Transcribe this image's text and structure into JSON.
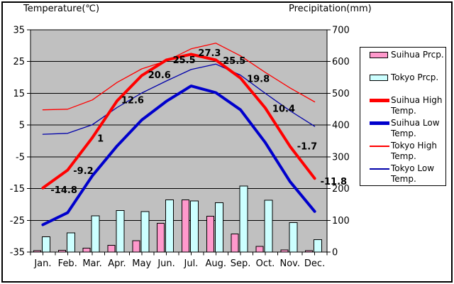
{
  "page": {
    "left_axis_title": "Temperature(℃)",
    "right_axis_title": "Precipitation(mm)"
  },
  "colors": {
    "plot_background": "#C0C0C0",
    "suihua_prcp_bar": "#FF99CC",
    "tokyo_prcp_bar": "#CCFFFF",
    "suihua_temp_line": "#FF0000",
    "suihua_low_line": "#0000CC",
    "tokyo_high_line": "#FF0000",
    "tokyo_low_line": "#0000AA",
    "grid_and_text": "#000000"
  },
  "chart_data": {
    "type": "combo-bar-line",
    "categories": [
      "Jan.",
      "Feb.",
      "Mar.",
      "Apr.",
      "May",
      "Jun.",
      "Jul.",
      "Aug.",
      "Sep.",
      "Oct.",
      "Nov.",
      "Dec."
    ],
    "temp_axis": {
      "title": "Temperature(℃)",
      "min": -35,
      "max": 35,
      "ticks": [
        35,
        25,
        15,
        5,
        -5,
        -15,
        -25,
        -35
      ],
      "side": "left",
      "grid": true
    },
    "precip_axis": {
      "title": "Precipitation(mm)",
      "min": 0,
      "max": 700,
      "ticks": [
        700,
        600,
        500,
        400,
        300,
        200,
        100,
        0
      ],
      "side": "right"
    },
    "series": [
      {
        "name": "Suihua Prcp.",
        "type": "bar",
        "axis": "precip",
        "color": "#FF99CC",
        "values": [
          4,
          6,
          12,
          21,
          36,
          91,
          164,
          113,
          57,
          18,
          7,
          5
        ]
      },
      {
        "name": "Tokyo Prcp.",
        "type": "bar",
        "axis": "precip",
        "color": "#CCFFFF",
        "values": [
          48.6,
          60.2,
          114.5,
          130.3,
          128.0,
          164.9,
          161.5,
          155.1,
          208.5,
          163.1,
          92.5,
          39.6
        ]
      },
      {
        "name": "Suihua High Temp.",
        "type": "line",
        "axis": "temp",
        "color": "#FF0000",
        "width": 4,
        "values": [
          -14.8,
          -9.2,
          1,
          12.6,
          20.6,
          25.5,
          27.3,
          25.5,
          19.8,
          10.4,
          -1.7,
          -11.8
        ]
      },
      {
        "name": "Suihua Low Temp.",
        "type": "line",
        "axis": "temp",
        "color": "#0000CC",
        "width": 4,
        "values": [
          -26.4,
          -22.6,
          -11,
          -1.6,
          6.6,
          12.5,
          17.3,
          15.2,
          9.8,
          -0.5,
          -12.8,
          -22.2
        ]
      },
      {
        "name": "Tokyo High Temp.",
        "type": "line",
        "axis": "temp",
        "color": "#FF0000",
        "width": 1.3,
        "values": [
          9.8,
          10.0,
          12.9,
          18.4,
          22.7,
          25.2,
          29.0,
          30.8,
          26.8,
          21.6,
          16.7,
          12.3
        ]
      },
      {
        "name": "Tokyo Low Temp.",
        "type": "line",
        "axis": "temp",
        "color": "#0000AA",
        "width": 1.3,
        "values": [
          2.1,
          2.4,
          5.1,
          10.5,
          15.1,
          18.9,
          22.5,
          24.2,
          20.7,
          15.0,
          9.5,
          4.6
        ]
      }
    ],
    "point_labels": {
      "series": "Suihua High Temp.",
      "labels": [
        "-14.8",
        "-9.2",
        "1",
        "12.6",
        "20.6",
        "25.5",
        "27.3",
        "25.5",
        "19.8",
        "10.4",
        "-1.7",
        "-11.8"
      ]
    },
    "legend_position": "right"
  },
  "legend": {
    "items": [
      {
        "label": "Suihua Prcp.",
        "swatch": "bar",
        "color": "#FF99CC"
      },
      {
        "label": "Tokyo Prcp.",
        "swatch": "bar",
        "color": "#CCFFFF"
      },
      {
        "label": "Suihua High Temp.",
        "swatch": "thick-line",
        "color": "#FF0000"
      },
      {
        "label": "Suihua Low Temp.",
        "swatch": "thick-line",
        "color": "#0000CC"
      },
      {
        "label": "Tokyo High Temp.",
        "swatch": "thin-line",
        "color": "#FF0000"
      },
      {
        "label": "Tokyo Low Temp.",
        "swatch": "thin-line",
        "color": "#0000AA"
      }
    ]
  }
}
